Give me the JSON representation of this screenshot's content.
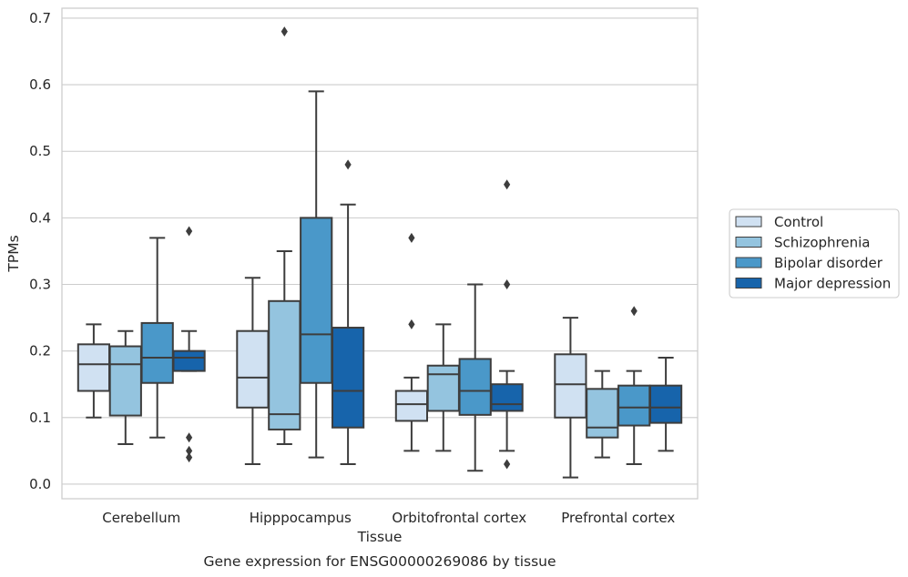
{
  "chart_data": {
    "type": "boxplot",
    "title": "Gene expression for ENSG00000269086 by tissue",
    "xlabel": "Tissue",
    "ylabel": "TPMs",
    "ylim": [
      -0.022,
      0.715
    ],
    "yticks": [
      "0.0",
      "0.1",
      "0.2",
      "0.3",
      "0.4",
      "0.5",
      "0.6",
      "0.7"
    ],
    "grid": "horizontal",
    "legend_position": "right",
    "categories": [
      "Cerebellum",
      "Hipppocampus",
      "Orbitofrontal cortex",
      "Prefrontal cortex"
    ],
    "series": [
      {
        "name": "Control",
        "color": "#d0e1f2",
        "boxes": [
          {
            "whislo": 0.1,
            "q1": 0.14,
            "med": 0.18,
            "q3": 0.21,
            "whishi": 0.24,
            "fliers": []
          },
          {
            "whislo": 0.03,
            "q1": 0.115,
            "med": 0.16,
            "q3": 0.23,
            "whishi": 0.31,
            "fliers": []
          },
          {
            "whislo": 0.05,
            "q1": 0.095,
            "med": 0.12,
            "q3": 0.14,
            "whishi": 0.16,
            "fliers": [
              0.24,
              0.37
            ]
          },
          {
            "whislo": 0.01,
            "q1": 0.1,
            "med": 0.15,
            "q3": 0.195,
            "whishi": 0.25,
            "fliers": []
          }
        ]
      },
      {
        "name": "Schizophrenia",
        "color": "#94c4df",
        "boxes": [
          {
            "whislo": 0.06,
            "q1": 0.103,
            "med": 0.18,
            "q3": 0.207,
            "whishi": 0.23,
            "fliers": []
          },
          {
            "whislo": 0.06,
            "q1": 0.082,
            "med": 0.105,
            "q3": 0.275,
            "whishi": 0.35,
            "fliers": [
              0.68
            ]
          },
          {
            "whislo": 0.05,
            "q1": 0.11,
            "med": 0.165,
            "q3": 0.178,
            "whishi": 0.24,
            "fliers": []
          },
          {
            "whislo": 0.04,
            "q1": 0.07,
            "med": 0.085,
            "q3": 0.143,
            "whishi": 0.17,
            "fliers": []
          }
        ]
      },
      {
        "name": "Bipolar disorder",
        "color": "#4a98c9",
        "boxes": [
          {
            "whislo": 0.07,
            "q1": 0.152,
            "med": 0.19,
            "q3": 0.242,
            "whishi": 0.37,
            "fliers": []
          },
          {
            "whislo": 0.04,
            "q1": 0.152,
            "med": 0.225,
            "q3": 0.4,
            "whishi": 0.59,
            "fliers": []
          },
          {
            "whislo": 0.02,
            "q1": 0.104,
            "med": 0.14,
            "q3": 0.188,
            "whishi": 0.3,
            "fliers": []
          },
          {
            "whislo": 0.03,
            "q1": 0.088,
            "med": 0.115,
            "q3": 0.148,
            "whishi": 0.17,
            "fliers": [
              0.26
            ]
          }
        ]
      },
      {
        "name": "Major depression",
        "color": "#1764ab",
        "boxes": [
          {
            "whislo": 0.17,
            "q1": 0.17,
            "med": 0.19,
            "q3": 0.2,
            "whishi": 0.23,
            "fliers": [
              0.38,
              0.07,
              0.05,
              0.04
            ]
          },
          {
            "whislo": 0.03,
            "q1": 0.085,
            "med": 0.14,
            "q3": 0.235,
            "whishi": 0.42,
            "fliers": [
              0.48
            ]
          },
          {
            "whislo": 0.05,
            "q1": 0.11,
            "med": 0.12,
            "q3": 0.15,
            "whishi": 0.17,
            "fliers": [
              0.3,
              0.45,
              0.03
            ]
          },
          {
            "whislo": 0.05,
            "q1": 0.092,
            "med": 0.115,
            "q3": 0.148,
            "whishi": 0.19,
            "fliers": []
          }
        ]
      }
    ]
  }
}
